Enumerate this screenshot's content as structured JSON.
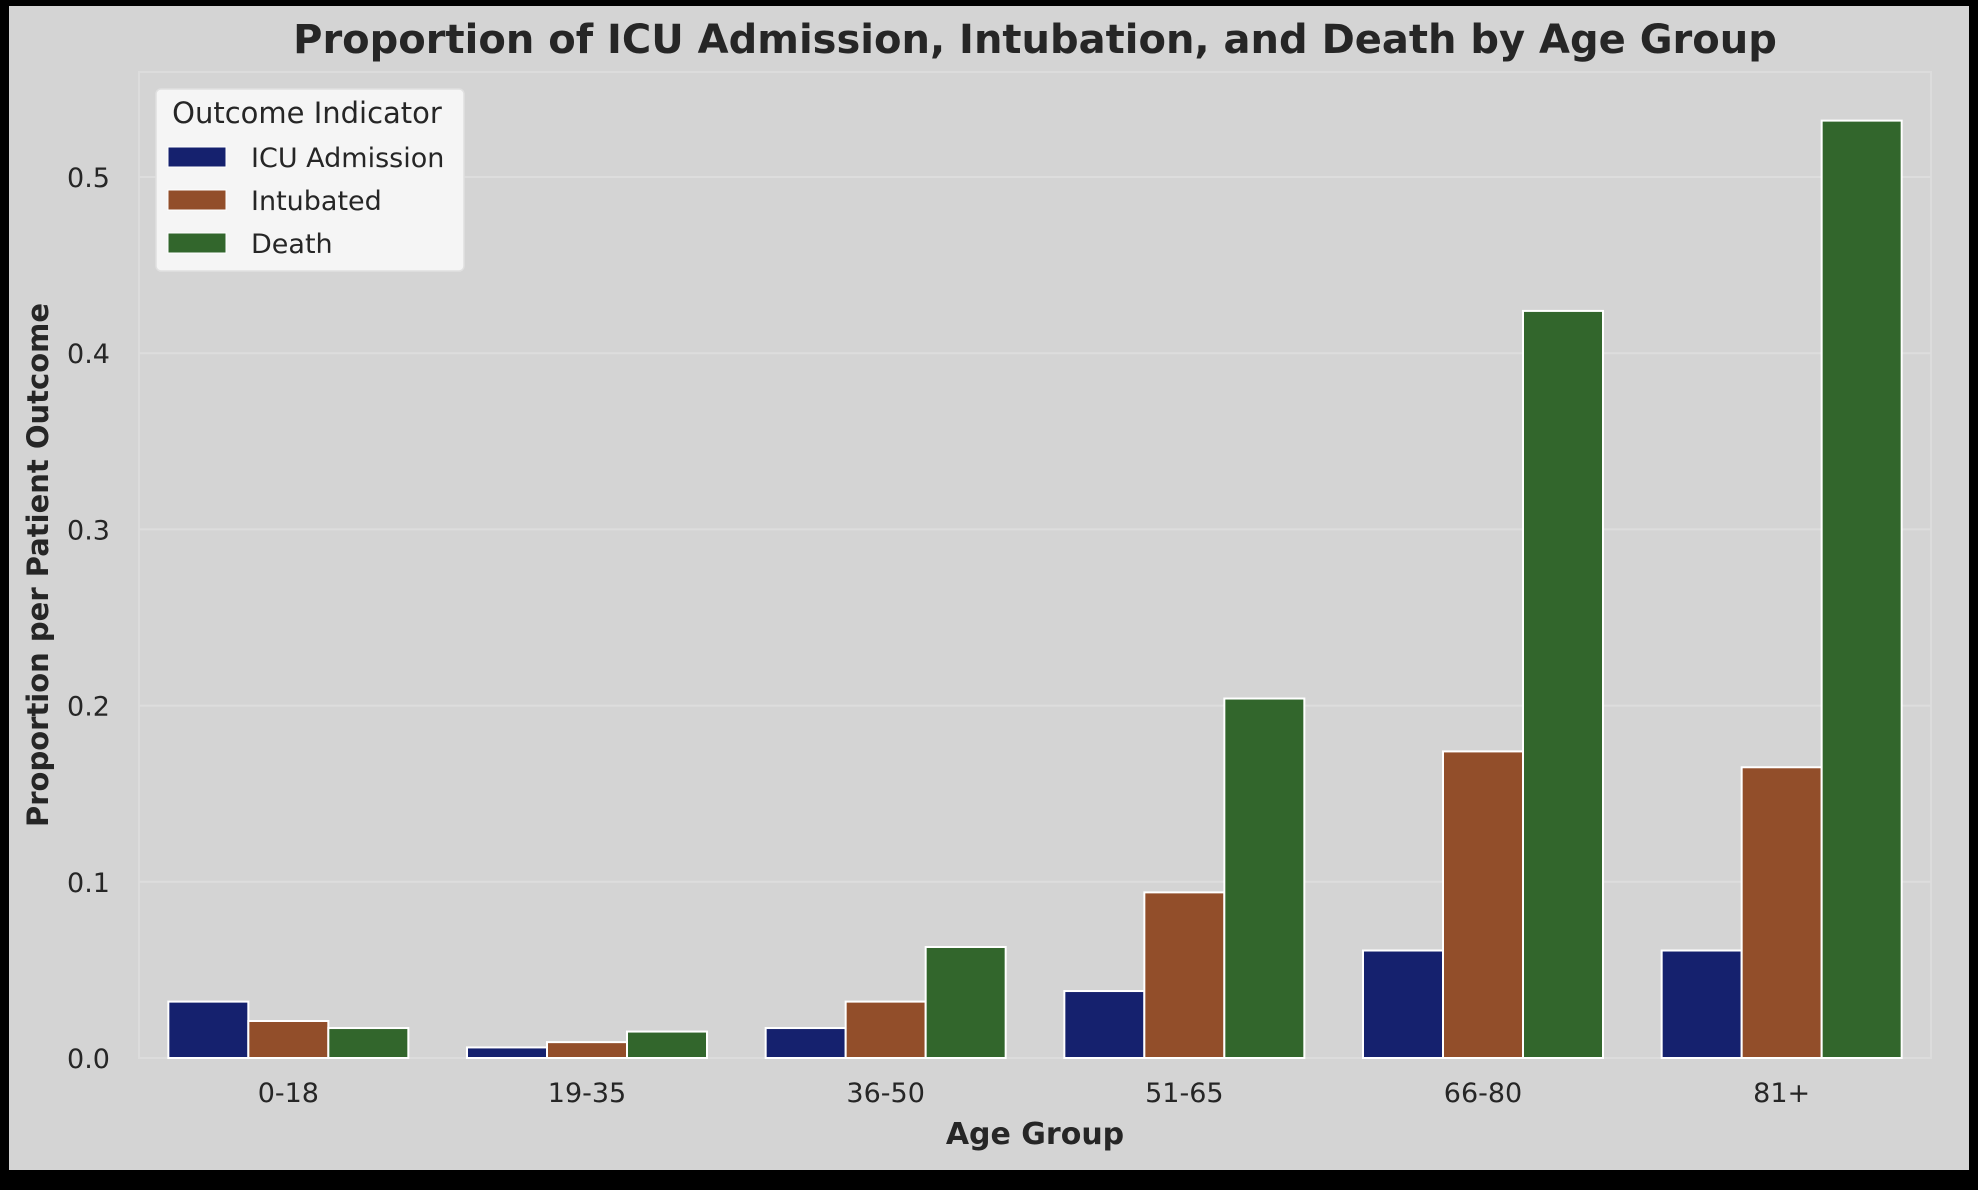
{
  "chart_data": {
    "type": "bar",
    "title": "Proportion of ICU Admission, Intubation, and Death by Age Group",
    "xlabel": "Age Group",
    "ylabel": "Proportion per Patient Outcome",
    "categories": [
      "0-18",
      "19-35",
      "36-50",
      "51-65",
      "66-80",
      "81+"
    ],
    "series": [
      {
        "name": "ICU Admission",
        "color": "#15216e",
        "values": [
          0.032,
          0.006,
          0.017,
          0.038,
          0.061,
          0.061
        ]
      },
      {
        "name": "Intubated",
        "color": "#924e2a",
        "values": [
          0.021,
          0.009,
          0.032,
          0.094,
          0.174,
          0.165
        ]
      },
      {
        "name": "Death",
        "color": "#32662c",
        "values": [
          0.017,
          0.015,
          0.063,
          0.204,
          0.424,
          0.532
        ]
      }
    ],
    "ylim": [
      0,
      0.56
    ],
    "yticks": [
      0.0,
      0.1,
      0.2,
      0.3,
      0.4,
      0.5
    ],
    "ytick_labels": [
      "0.0",
      "0.1",
      "0.2",
      "0.3",
      "0.4",
      "0.5"
    ],
    "legend": {
      "title": "Outcome Indicator",
      "position": "top-left"
    },
    "grid": true,
    "colors": {
      "figure_background": "#d4d4d4",
      "plot_background": "#d4d4d4",
      "grid": "#dddddd",
      "frame": "#000000"
    }
  }
}
